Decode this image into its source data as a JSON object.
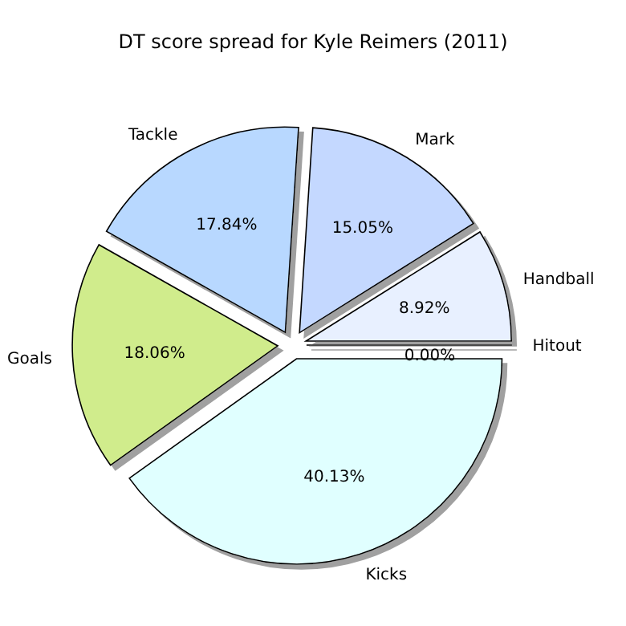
{
  "chart_data": {
    "type": "pie",
    "title": "DT score spread for Kyle Reimers (2011)",
    "categories": [
      "Hitout",
      "Handball",
      "Mark",
      "Tackle",
      "Goals",
      "Kicks"
    ],
    "values": [
      0.0,
      8.92,
      15.05,
      17.84,
      18.06,
      40.13
    ],
    "value_labels": [
      "0.00%",
      "8.92%",
      "15.05%",
      "17.84%",
      "18.06%",
      "40.13%"
    ],
    "colors": [
      "#f0f4ff",
      "#e8f0ff",
      "#c4d8ff",
      "#b8d8ff",
      "#d0ec8c",
      "#e0ffff"
    ]
  }
}
